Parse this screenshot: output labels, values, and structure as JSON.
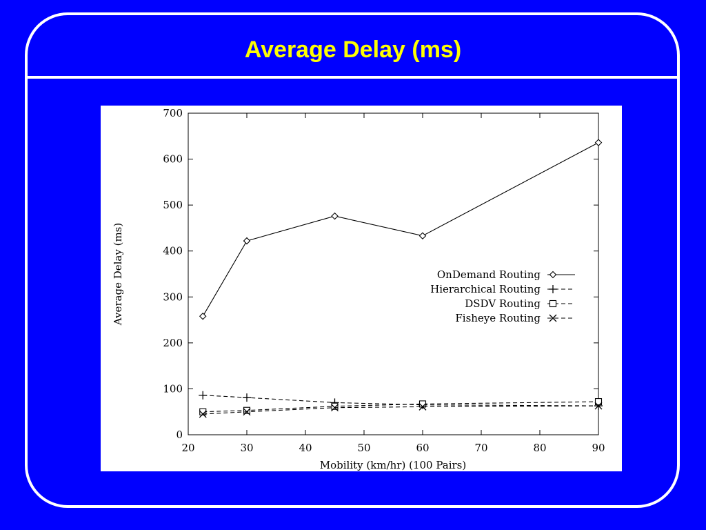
{
  "slide": {
    "title": "Average Delay (ms)"
  },
  "colors": {
    "background": "#0000FF",
    "frame": "#FFFFFF",
    "title": "#FFFF00",
    "plot_background": "#FFFFFF",
    "ink": "#000000"
  },
  "chart_data": {
    "type": "line",
    "xlabel": "Mobility (km/hr) (100 Pairs)",
    "ylabel": "Average Delay (ms)",
    "xlim": [
      20,
      90
    ],
    "ylim": [
      0,
      700
    ],
    "xticks": [
      20,
      30,
      40,
      50,
      60,
      70,
      80,
      90
    ],
    "yticks": [
      0,
      100,
      200,
      300,
      400,
      500,
      600,
      700
    ],
    "grid": false,
    "legend_position": "right",
    "x": [
      22.5,
      30,
      45,
      60,
      90
    ],
    "series": [
      {
        "name": "OnDemand Routing",
        "marker": "diamond",
        "line": "solid",
        "values": [
          258,
          422,
          476,
          433,
          636
        ]
      },
      {
        "name": "Hierarchical Routing",
        "marker": "plus",
        "line": "dashed",
        "values": [
          86,
          81,
          70,
          65,
          63
        ]
      },
      {
        "name": "DSDV Routing",
        "marker": "square",
        "line": "dashed",
        "values": [
          50,
          53,
          62,
          67,
          72
        ]
      },
      {
        "name": "Fisheye Routing",
        "marker": "cross",
        "line": "dashed",
        "values": [
          45,
          50,
          59,
          61,
          63
        ]
      }
    ]
  }
}
